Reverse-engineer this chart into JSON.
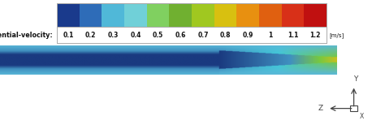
{
  "colorbar_label": "tangential-velocity:",
  "colorbar_unit": "[m/s]",
  "labels": [
    "0.1",
    "0.2",
    "0.3",
    "0.4",
    "0.5",
    "0.6",
    "0.7",
    "0.8",
    "0.9",
    "1",
    "1.1",
    "1.2"
  ],
  "colors_cb": [
    "#1a3a8c",
    "#2e6cb8",
    "#50b8d8",
    "#70d0d8",
    "#80d060",
    "#70b030",
    "#a0c820",
    "#d8c010",
    "#e89010",
    "#e06010",
    "#d83018",
    "#c01010"
  ],
  "flow_bg": "#5ab8d8",
  "flow_dark": "#1a3a80",
  "flow_light_blue": "#4090c0",
  "flow_cyan_edge": "#40c8d8",
  "flow_green": "#78c840",
  "flow_yellow": "#c8c020",
  "flow_orange": "#e89020",
  "axis_color": "#444444",
  "text_color": "#111111",
  "legend_border": "#aaaaaa",
  "white": "#ffffff"
}
